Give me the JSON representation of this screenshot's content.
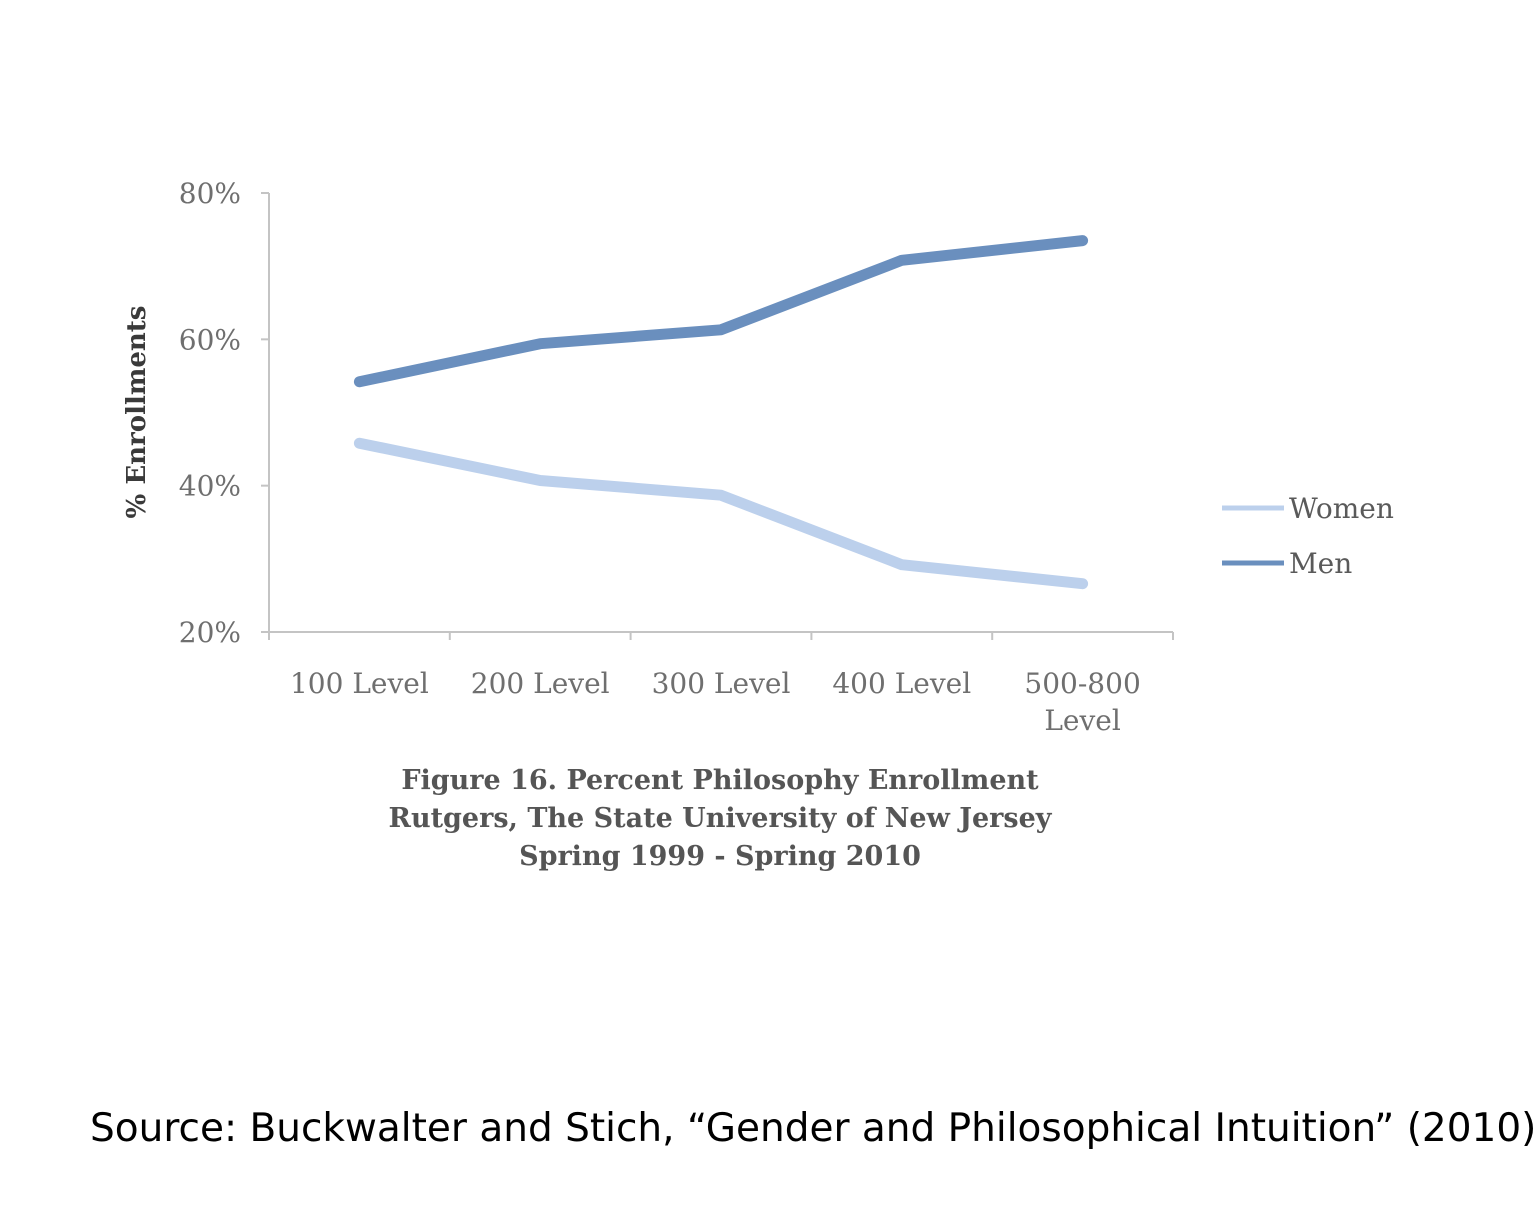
{
  "chart_data": {
    "type": "line",
    "categories": [
      "100 Level",
      "200 Level",
      "300 Level",
      "400 Level",
      "500-800 Level"
    ],
    "category_lines": [
      [
        "100 Level"
      ],
      [
        "200 Level"
      ],
      [
        "300 Level"
      ],
      [
        "400 Level"
      ],
      [
        "500-800",
        "Level"
      ]
    ],
    "series": [
      {
        "name": "Women",
        "values": [
          45.8,
          40.7,
          38.7,
          29.2,
          26.6
        ],
        "color": "#bcd0ec"
      },
      {
        "name": "Men",
        "values": [
          54.2,
          59.4,
          61.3,
          70.8,
          73.5
        ],
        "color": "#6a8fbe"
      }
    ],
    "ylabel": "% Enrollments",
    "ylim": [
      20,
      80
    ],
    "yticks": [
      "20%",
      "40%",
      "60%",
      "80%"
    ],
    "ytick_values": [
      20,
      40,
      60,
      80
    ],
    "grid": false,
    "legend_position": "right",
    "title_lines": [
      "Figure 16. Percent Philosophy Enrollment",
      "Rutgers, The State University of New Jersey",
      "Spring 1999 - Spring 2010"
    ]
  },
  "source": "Source: Buckwalter and Stich, “Gender and Philosophical Intuition” (2010)"
}
